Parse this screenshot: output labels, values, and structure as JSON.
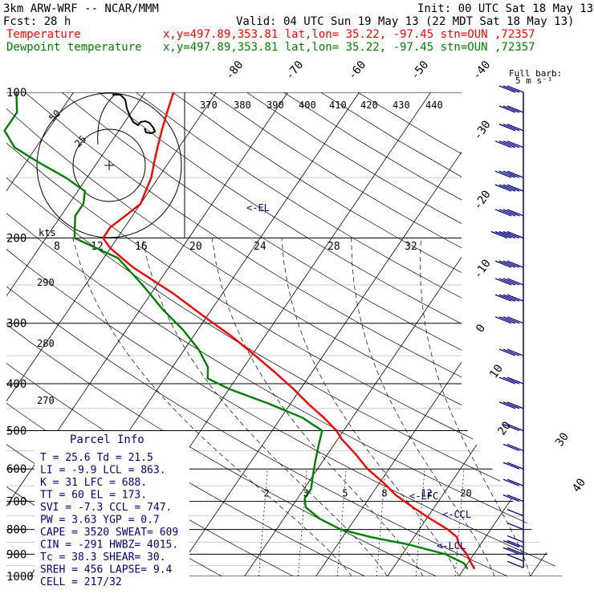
{
  "header": {
    "line1_left": "3km ARW-WRF -- NCAR/MMM",
    "line1_right": "Init: 00 UTC Sat 18 May 13",
    "line2_left": "Fcst:    28 h",
    "line2_right": "Valid: 04 UTC Sun 19 May 13 (22 MDT Sat 18 May 13)",
    "temp_label": "Temperature",
    "temp_info": "x,y=497.89,353.81   lat,lon= 35.22, -97.45  stn=OUN ,72357",
    "dew_label": "Dewpoint temperature",
    "dew_info": "x,y=497.89,353.81   lat,lon= 35.22, -97.45  stn=OUN ,72357",
    "full_barb": "Full barb:",
    "full_barb_units": "5 m s⁻¹"
  },
  "colors": {
    "temperature": "#ff0000",
    "dewpoint": "#008000",
    "annotation": "#000080",
    "text": "#000000",
    "background": "#ffffff"
  },
  "parcel_info": {
    "title": "Parcel Info",
    "rows": [
      "T   =   25.6  Td =  21.5",
      "LI  =   -9.9  LCL =  863.",
      "K   =     31  LFC =  688.",
      "TT  =     60  EL  =  173.",
      "SVI =   -7.3  CCL =  747.",
      "PW  =   3.63  YGP =   0.7",
      "CAPE =  3520  SWEAT=  609",
      "CIN  =  -291  HWBZ= 4015.",
      "Tc   =  38.3  SHEAR=  30.",
      "SREH =   456  LAPSE=  9.4",
      "CELL = 217/32"
    ]
  },
  "hodograph": {
    "units": "kts",
    "ring_labels": [
      "8",
      "12",
      "16",
      "20",
      "24",
      "28",
      "32"
    ],
    "circle_labels": [
      "50",
      "25"
    ]
  },
  "chart_data": {
    "type": "line",
    "title": "",
    "xlabel": "",
    "ylabel": "",
    "y_scale": "log-pressure",
    "ylim": [
      1000,
      100
    ],
    "pressure_ticks": [
      100,
      200,
      300,
      400,
      500,
      600,
      700,
      800,
      900,
      1000
    ],
    "isotherm_labels": [
      "-80",
      "-70",
      "-60",
      "-50",
      "-40",
      "-30",
      "-20",
      "-10",
      "0",
      "10",
      "20",
      "30",
      "40"
    ],
    "theta_labels": [
      "370",
      "380",
      "390",
      "400",
      "410",
      "420",
      "430",
      "440"
    ],
    "theta_e_labels": [
      "290",
      "280",
      "270"
    ],
    "mixing_ratio_labels": [
      "2",
      "3",
      "5",
      "8",
      "12",
      "20"
    ],
    "annotations": [
      "<-EL",
      "<-LFC",
      "<-CCL",
      "<-LCL"
    ],
    "series": [
      {
        "name": "Temperature",
        "pressure": [
          965,
          940,
          900,
          860,
          830,
          800,
          760,
          720,
          680,
          640,
          600,
          560,
          520,
          500,
          470,
          440,
          410,
          380,
          350,
          320,
          290,
          260,
          230,
          210,
          200,
          190,
          180,
          170,
          160,
          150,
          140,
          130,
          120,
          110,
          100
        ],
        "values": [
          21.5,
          20.5,
          19,
          17,
          16,
          14,
          10.5,
          7,
          3.5,
          0.5,
          -3,
          -6,
          -9.5,
          -11,
          -14,
          -17.5,
          -21,
          -25,
          -29.5,
          -34.5,
          -40.5,
          -47,
          -55,
          -60,
          -62,
          -62,
          -61,
          -60,
          -60.5,
          -61,
          -62,
          -63,
          -64,
          -65,
          -66
        ]
      },
      {
        "name": "Dewpoint temperature",
        "pressure": [
          965,
          940,
          900,
          860,
          830,
          800,
          760,
          720,
          690,
          660,
          620,
          580,
          540,
          500,
          470,
          440,
          410,
          390,
          370,
          340,
          310,
          280,
          250,
          220,
          200,
          180,
          170,
          160,
          150,
          140,
          130,
          120,
          110,
          100
        ],
        "values": [
          20.5,
          19.5,
          16,
          10,
          4,
          -1,
          -5,
          -8,
          -9,
          -9,
          -10,
          -11,
          -12,
          -13,
          -17,
          -23,
          -30,
          -34,
          -35,
          -38,
          -42,
          -47,
          -52,
          -58,
          -66,
          -68,
          -68,
          -69,
          -73,
          -78,
          -83,
          -86,
          -86,
          -88
        ]
      }
    ],
    "wind_barbs": {
      "pressure": [
        960,
        930,
        900,
        870,
        850,
        800,
        750,
        700,
        650,
        600,
        550,
        500,
        450,
        400,
        350,
        300,
        270,
        250,
        230,
        200,
        180,
        160,
        150,
        130,
        120,
        110,
        100
      ],
      "speed_ms": [
        8,
        12,
        15,
        15,
        13,
        12,
        14,
        15,
        17,
        20,
        22,
        24,
        27,
        30,
        33,
        36,
        38,
        40,
        42,
        45,
        43,
        40,
        38,
        36,
        33,
        30,
        28
      ]
    }
  }
}
